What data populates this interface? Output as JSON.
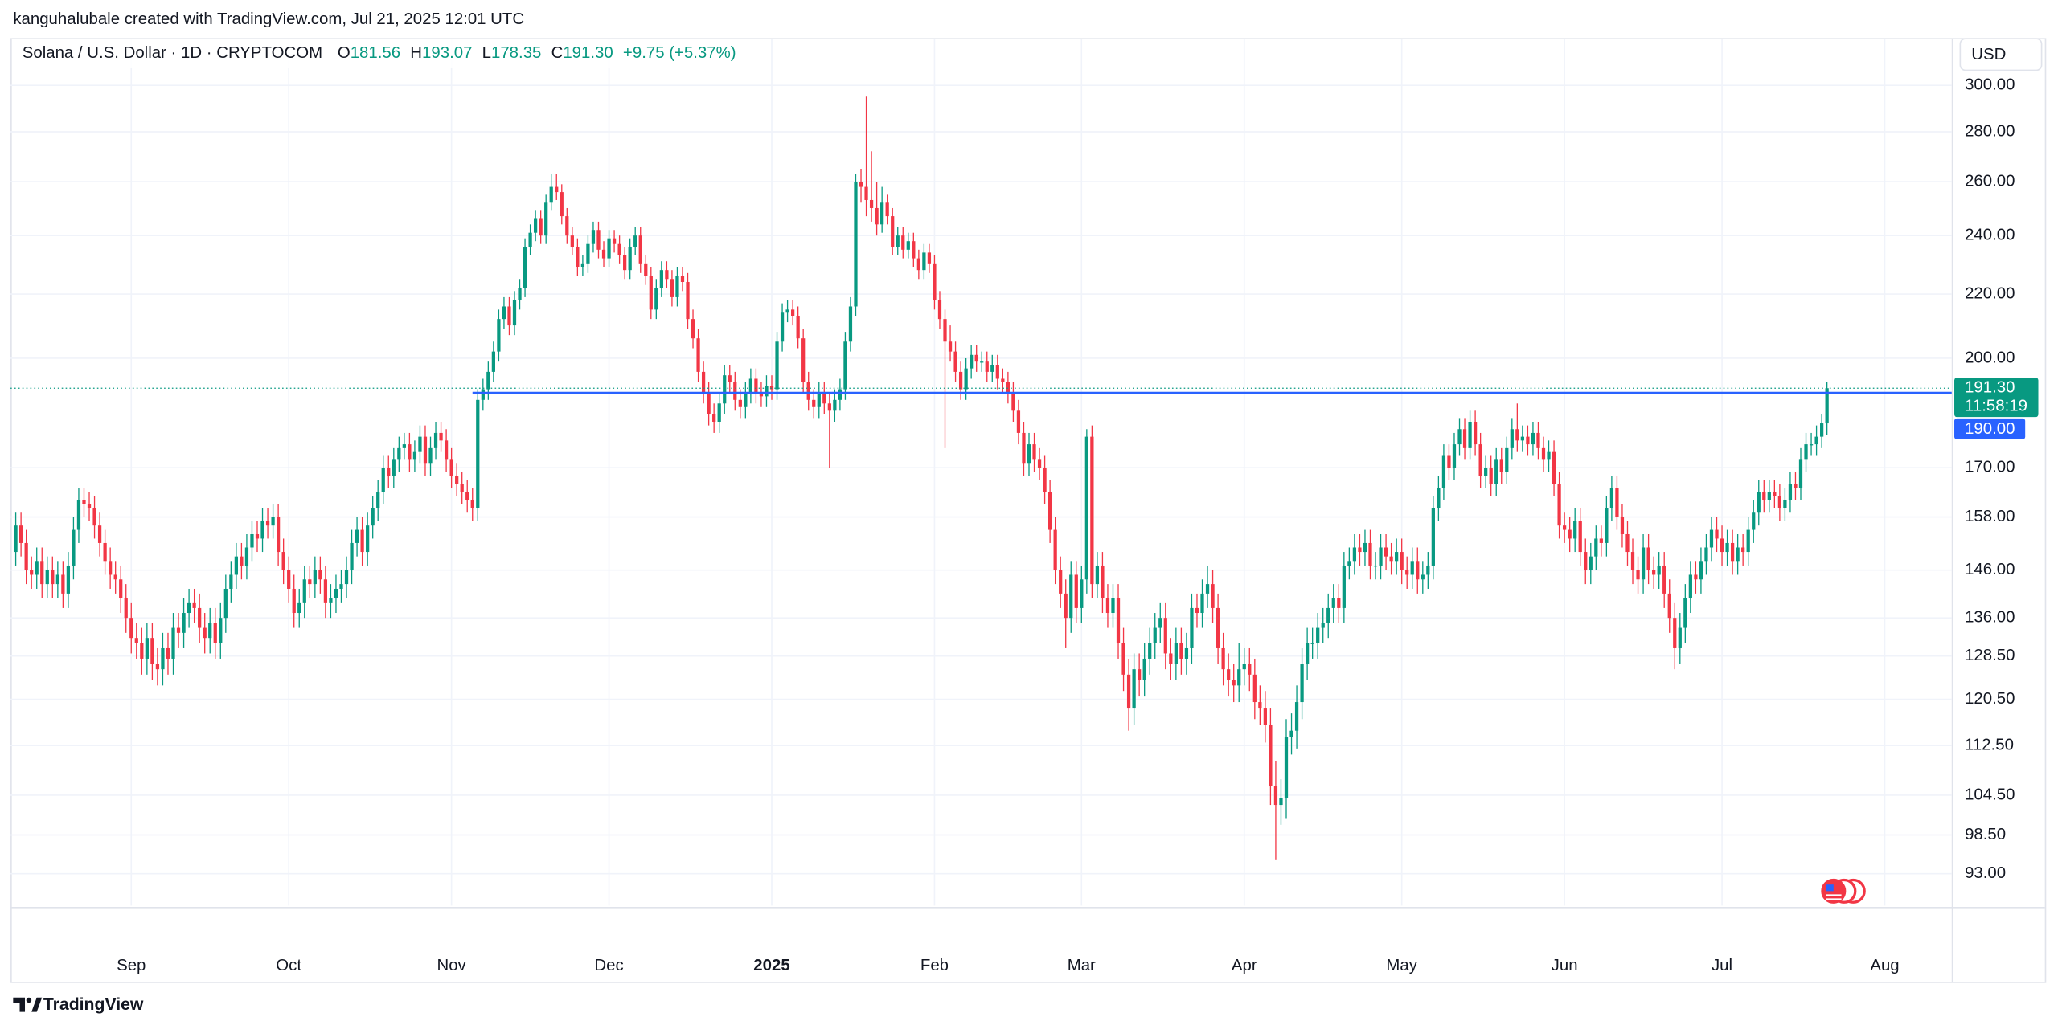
{
  "chart_data": {
    "type": "candlestick",
    "header": "kanguhalubale created with TradingView.com, Jul 21, 2025 12:01 UTC",
    "title": "Solana / U.S. Dollar · 1D · CRYPTOCOM",
    "legend": {
      "open_label": "O",
      "open": "181.56",
      "high_label": "H",
      "high": "193.07",
      "low_label": "L",
      "low": "178.35",
      "close_label": "C",
      "close": "191.30",
      "change": "+9.75 (+5.37%)"
    },
    "currency": "USD",
    "footer": "TradingView",
    "log_scale": true,
    "grid": true,
    "up_color": "#089981",
    "down_color": "#f23645",
    "xlim": [
      -1,
      368.75
    ],
    "xticks": [
      {
        "value": 22,
        "label": "Sep"
      },
      {
        "value": 52,
        "label": "Oct"
      },
      {
        "value": 83,
        "label": "Nov"
      },
      {
        "value": 113,
        "label": "Dec"
      },
      {
        "value": 144,
        "label": "2025"
      },
      {
        "value": 175,
        "label": "Feb"
      },
      {
        "value": 203,
        "label": "Mar"
      },
      {
        "value": 234,
        "label": "Apr"
      },
      {
        "value": 264,
        "label": "May"
      },
      {
        "value": 295,
        "label": "Jun"
      },
      {
        "value": 325,
        "label": "Jul"
      },
      {
        "value": 356,
        "label": "Aug"
      }
    ],
    "ylim": [
      88.7,
      305.9
    ],
    "yticks": [
      {
        "value": 300,
        "label": "300.00"
      },
      {
        "value": 280,
        "label": "280.00"
      },
      {
        "value": 260,
        "label": "260.00"
      },
      {
        "value": 240,
        "label": "240.00"
      },
      {
        "value": 220,
        "label": "220.00"
      },
      {
        "value": 200,
        "label": "200.00"
      },
      {
        "value": 170,
        "label": "170.00"
      },
      {
        "value": 158,
        "label": "158.00"
      },
      {
        "value": 146,
        "label": "146.00"
      },
      {
        "value": 136,
        "label": "136.00"
      },
      {
        "value": 128.5,
        "label": "128.50"
      },
      {
        "value": 120.5,
        "label": "120.50"
      },
      {
        "value": 112.5,
        "label": "112.50"
      },
      {
        "value": 104.5,
        "label": "104.50"
      },
      {
        "value": 98.5,
        "label": "98.50"
      },
      {
        "value": 93,
        "label": "93.00"
      }
    ],
    "hline": {
      "value": 190,
      "label": "190.00",
      "x": 87,
      "color": "#2962ff"
    },
    "last_price": {
      "value": 191.3,
      "label": "191.30"
    },
    "countdown": "11:58:19",
    "open": [
      150,
      156,
      152,
      146,
      145,
      148,
      143,
      146,
      143,
      145,
      141,
      147,
      155,
      162,
      161,
      160,
      156,
      152,
      148,
      145,
      144,
      140,
      136,
      132,
      131,
      128,
      132,
      127,
      126,
      130,
      128,
      134,
      133,
      137,
      139,
      138,
      134,
      132,
      135,
      131,
      136,
      142,
      145,
      149,
      147,
      151,
      154,
      153,
      157,
      156,
      158,
      150,
      146,
      142,
      137,
      139,
      144,
      143,
      146,
      144,
      139,
      140,
      142,
      143,
      146,
      152,
      155,
      150,
      156,
      160,
      164,
      170,
      168,
      172,
      175,
      176,
      172,
      174,
      178,
      171,
      175,
      179,
      177,
      172,
      168,
      166,
      164,
      162,
      160,
      188,
      191,
      196,
      202,
      212,
      216,
      210,
      218,
      222,
      236,
      241,
      246,
      240,
      252,
      258,
      256,
      247,
      240,
      236,
      229,
      230,
      237,
      242,
      235,
      232,
      239,
      237,
      233,
      228,
      236,
      240,
      230,
      226,
      215,
      222,
      228,
      225,
      219,
      226,
      224,
      212,
      206,
      196,
      190,
      184,
      182,
      187,
      195,
      193,
      188,
      186,
      190,
      194,
      190,
      189,
      192,
      191,
      205,
      214,
      215,
      213,
      206,
      193,
      188,
      186,
      190,
      187,
      185,
      188,
      191,
      205,
      216,
      260,
      258,
      253,
      250,
      244,
      252,
      247,
      236,
      240,
      235,
      238,
      232,
      228,
      234,
      230,
      218,
      212,
      205,
      202,
      196,
      191,
      197,
      201,
      199,
      199,
      196,
      198,
      194,
      193,
      190,
      185,
      179,
      171,
      176,
      172,
      170,
      164,
      155,
      146,
      141,
      136,
      145,
      138,
      144,
      178,
      143,
      147,
      140,
      137,
      140,
      131,
      125,
      119,
      126,
      124,
      128,
      131,
      134,
      136,
      129,
      127,
      131,
      128,
      130,
      138,
      137,
      141,
      143,
      138,
      130,
      126,
      124,
      123,
      126,
      127,
      125,
      120,
      119,
      116,
      106,
      103,
      104,
      114,
      115,
      120,
      127,
      131,
      131,
      134,
      135,
      138,
      140,
      138,
      147,
      148,
      151,
      150,
      152,
      147,
      147,
      151,
      149,
      148,
      150,
      146,
      145,
      148,
      144,
      145,
      147,
      160,
      165,
      173,
      170,
      176,
      180,
      175,
      182,
      176,
      168,
      170,
      166,
      172,
      169,
      175,
      180,
      177,
      178,
      176,
      179,
      175,
      172,
      174,
      166,
      156,
      155,
      153,
      157,
      150,
      146,
      149,
      153,
      152,
      160,
      165,
      158,
      154,
      150,
      146,
      144,
      151,
      146,
      145,
      147,
      141,
      136,
      130,
      134,
      140,
      145,
      144,
      148,
      151,
      155,
      153,
      150,
      152,
      148,
      151,
      150,
      155,
      159,
      164,
      162,
      164,
      163,
      160,
      162,
      166,
      165,
      172,
      176,
      176,
      178,
      181.56
    ],
    "high": [
      159,
      159,
      155,
      149,
      151,
      151,
      149,
      149,
      148,
      148,
      150,
      158,
      165,
      165,
      164,
      163,
      159,
      155,
      151,
      148,
      147,
      143,
      139,
      135,
      134,
      135,
      135,
      130,
      133,
      133,
      137,
      137,
      140,
      142,
      142,
      141,
      137,
      138,
      138,
      139,
      145,
      148,
      152,
      152,
      154,
      157,
      157,
      160,
      160,
      161,
      161,
      153,
      149,
      145,
      142,
      147,
      147,
      149,
      149,
      147,
      143,
      145,
      146,
      149,
      155,
      158,
      158,
      159,
      163,
      167,
      173,
      173,
      175,
      178,
      179,
      179,
      177,
      181,
      181,
      178,
      182,
      182,
      180,
      175,
      171,
      169,
      167,
      165,
      191,
      194,
      199,
      205,
      215,
      219,
      219,
      221,
      225,
      239,
      244,
      249,
      249,
      255,
      263,
      263,
      259,
      250,
      243,
      239,
      233,
      240,
      245,
      245,
      238,
      242,
      242,
      240,
      236,
      239,
      243,
      243,
      233,
      229,
      225,
      231,
      231,
      228,
      229,
      229,
      227,
      215,
      209,
      199,
      193,
      187,
      190,
      198,
      198,
      196,
      191,
      193,
      197,
      197,
      193,
      195,
      195,
      208,
      217,
      218,
      218,
      216,
      209,
      196,
      191,
      193,
      193,
      190,
      191,
      194,
      208,
      219,
      263,
      265,
      295,
      272,
      260,
      258,
      255,
      250,
      243,
      243,
      241,
      241,
      235,
      237,
      237,
      233,
      221,
      215,
      210,
      205,
      199,
      200,
      204,
      204,
      202,
      202,
      201,
      201,
      197,
      196,
      193,
      188,
      182,
      179,
      179,
      175,
      173,
      167,
      158,
      149,
      144,
      148,
      148,
      147,
      180,
      181,
      150,
      150,
      143,
      143,
      143,
      134,
      128,
      129,
      129,
      131,
      134,
      137,
      139,
      139,
      132,
      134,
      134,
      133,
      141,
      141,
      144,
      147,
      146,
      141,
      133,
      129,
      127,
      131,
      130,
      130,
      128,
      123,
      122,
      119,
      110,
      107,
      117,
      118,
      123,
      130,
      134,
      134,
      137,
      138,
      141,
      143,
      143,
      150,
      151,
      154,
      154,
      155,
      155,
      150,
      154,
      154,
      152,
      153,
      153,
      149,
      151,
      151,
      148,
      150,
      163,
      168,
      176,
      176,
      179,
      183,
      183,
      185,
      185,
      179,
      173,
      173,
      175,
      175,
      178,
      183,
      187,
      181,
      181,
      182,
      182,
      178,
      177,
      177,
      169,
      159,
      158,
      160,
      160,
      153,
      152,
      156,
      156,
      163,
      168,
      168,
      161,
      157,
      153,
      149,
      154,
      154,
      149,
      150,
      150,
      144,
      139,
      137,
      143,
      148,
      148,
      151,
      154,
      158,
      158,
      156,
      155,
      155,
      154,
      154,
      158,
      162,
      167,
      167,
      167,
      167,
      166,
      165,
      169,
      169,
      175,
      179,
      179,
      181,
      184,
      193.07
    ],
    "low": [
      147,
      149,
      143,
      142,
      142,
      140,
      140,
      140,
      140,
      138,
      138,
      144,
      152,
      158,
      157,
      153,
      149,
      145,
      142,
      141,
      137,
      133,
      129,
      128,
      125,
      125,
      124,
      123,
      123,
      125,
      125,
      130,
      130,
      134,
      135,
      131,
      129,
      129,
      128,
      128,
      133,
      139,
      142,
      144,
      144,
      148,
      150,
      150,
      153,
      153,
      147,
      143,
      139,
      134,
      134,
      136,
      140,
      140,
      141,
      136,
      136,
      137,
      139,
      140,
      143,
      149,
      147,
      147,
      153,
      157,
      161,
      165,
      165,
      169,
      172,
      169,
      169,
      171,
      168,
      168,
      172,
      174,
      169,
      165,
      163,
      161,
      159,
      157,
      157,
      185,
      188,
      193,
      199,
      209,
      207,
      207,
      215,
      219,
      233,
      238,
      237,
      237,
      249,
      253,
      244,
      237,
      233,
      226,
      226,
      227,
      234,
      232,
      229,
      229,
      234,
      230,
      225,
      225,
      233,
      227,
      223,
      212,
      212,
      219,
      222,
      216,
      216,
      221,
      209,
      203,
      193,
      187,
      181,
      179,
      179,
      184,
      190,
      185,
      183,
      183,
      187,
      187,
      186,
      186,
      188,
      188,
      202,
      211,
      210,
      203,
      190,
      185,
      183,
      183,
      184,
      170,
      182,
      185,
      188,
      202,
      213,
      252,
      247,
      245,
      240,
      241,
      244,
      233,
      233,
      232,
      232,
      229,
      225,
      225,
      227,
      215,
      209,
      175,
      199,
      193,
      188,
      188,
      194,
      196,
      196,
      193,
      193,
      191,
      190,
      187,
      182,
      176,
      168,
      168,
      169,
      167,
      161,
      152,
      143,
      138,
      130,
      133,
      135,
      135,
      141,
      140,
      140,
      137,
      134,
      134,
      128,
      122,
      115,
      116,
      121,
      121,
      125,
      128,
      131,
      126,
      124,
      124,
      125,
      125,
      127,
      134,
      134,
      138,
      135,
      127,
      123,
      121,
      120,
      120,
      123,
      122,
      117,
      116,
      113,
      103,
      95,
      100,
      101,
      111,
      112,
      117,
      124,
      128,
      128,
      131,
      132,
      135,
      135,
      135,
      144,
      145,
      147,
      147,
      144,
      144,
      144,
      146,
      145,
      145,
      143,
      142,
      142,
      141,
      141,
      142,
      144,
      157,
      162,
      167,
      167,
      173,
      172,
      172,
      173,
      165,
      165,
      163,
      163,
      166,
      166,
      172,
      174,
      174,
      173,
      173,
      172,
      169,
      169,
      163,
      153,
      152,
      150,
      150,
      147,
      143,
      143,
      146,
      149,
      149,
      157,
      155,
      151,
      147,
      143,
      141,
      141,
      143,
      142,
      142,
      138,
      133,
      126,
      127,
      131,
      137,
      141,
      141,
      145,
      148,
      150,
      147,
      147,
      145,
      145,
      147,
      147,
      152,
      156,
      159,
      159,
      160,
      157,
      157,
      159,
      162,
      162,
      169,
      173,
      173,
      175,
      178.35
    ],
    "close": [
      156,
      152,
      146,
      145,
      148,
      143,
      146,
      143,
      145,
      141,
      147,
      155,
      162,
      161,
      160,
      156,
      152,
      148,
      145,
      144,
      140,
      136,
      132,
      131,
      128,
      132,
      127,
      126,
      130,
      128,
      134,
      133,
      137,
      139,
      138,
      134,
      132,
      135,
      131,
      136,
      142,
      145,
      149,
      147,
      151,
      154,
      153,
      157,
      156,
      158,
      150,
      146,
      142,
      137,
      139,
      144,
      143,
      146,
      144,
      139,
      140,
      142,
      143,
      146,
      152,
      155,
      150,
      156,
      160,
      164,
      170,
      168,
      172,
      175,
      176,
      172,
      174,
      178,
      171,
      175,
      179,
      177,
      172,
      168,
      166,
      164,
      162,
      160,
      188,
      191,
      196,
      202,
      212,
      216,
      210,
      218,
      222,
      236,
      241,
      246,
      240,
      252,
      258,
      256,
      247,
      240,
      236,
      229,
      230,
      237,
      242,
      235,
      232,
      239,
      237,
      233,
      228,
      236,
      240,
      230,
      226,
      215,
      222,
      228,
      225,
      219,
      226,
      224,
      212,
      206,
      196,
      190,
      184,
      182,
      187,
      195,
      193,
      188,
      186,
      190,
      194,
      190,
      189,
      192,
      191,
      205,
      214,
      215,
      213,
      206,
      193,
      188,
      186,
      190,
      187,
      185,
      188,
      191,
      205,
      216,
      260,
      258,
      253,
      250,
      244,
      252,
      247,
      236,
      240,
      235,
      238,
      232,
      228,
      234,
      230,
      218,
      212,
      205,
      202,
      196,
      191,
      197,
      201,
      199,
      199,
      196,
      198,
      194,
      193,
      190,
      185,
      179,
      171,
      176,
      172,
      170,
      164,
      155,
      146,
      141,
      136,
      145,
      138,
      144,
      178,
      143,
      147,
      140,
      137,
      140,
      131,
      125,
      119,
      126,
      124,
      128,
      131,
      134,
      136,
      129,
      127,
      131,
      128,
      130,
      138,
      137,
      141,
      143,
      138,
      130,
      126,
      124,
      123,
      126,
      127,
      125,
      120,
      119,
      116,
      106,
      103,
      104,
      114,
      115,
      120,
      127,
      131,
      131,
      134,
      135,
      138,
      140,
      138,
      147,
      148,
      151,
      150,
      152,
      147,
      147,
      151,
      149,
      148,
      150,
      146,
      145,
      148,
      144,
      145,
      147,
      160,
      165,
      173,
      170,
      176,
      180,
      175,
      182,
      176,
      168,
      170,
      166,
      172,
      169,
      175,
      180,
      177,
      178,
      176,
      179,
      175,
      172,
      174,
      166,
      156,
      155,
      153,
      157,
      150,
      146,
      149,
      153,
      152,
      160,
      165,
      158,
      154,
      150,
      146,
      144,
      151,
      146,
      145,
      147,
      141,
      136,
      130,
      134,
      140,
      145,
      144,
      148,
      151,
      155,
      153,
      150,
      152,
      148,
      151,
      150,
      155,
      159,
      164,
      162,
      164,
      163,
      160,
      162,
      166,
      165,
      172,
      176,
      176,
      178,
      181.56,
      191.3
    ]
  }
}
